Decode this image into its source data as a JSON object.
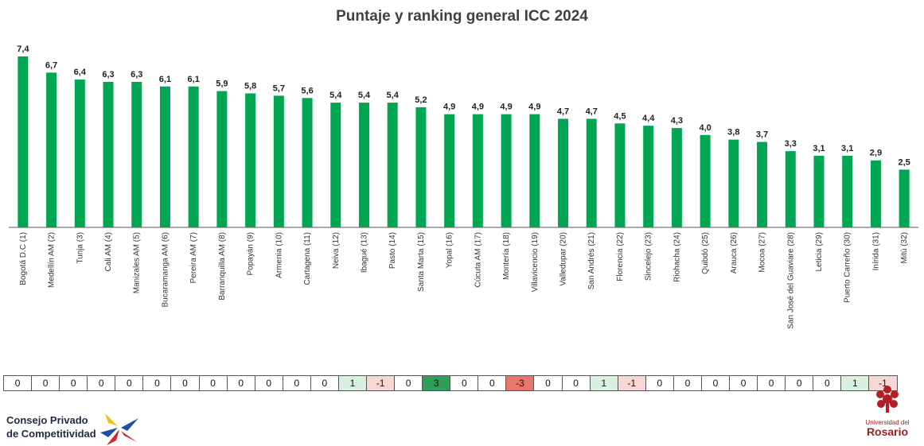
{
  "chart_data": {
    "type": "bar",
    "title": "Puntaje y ranking general ICC 2024",
    "categories": [
      "Bogotá D.C (1)",
      "Medellín AM (2)",
      "Tunja (3)",
      "Cali AM (4)",
      "Manizales AM (5)",
      "Bucaramanga AM (6)",
      "Pereira AM (7)",
      "Barranquilla AM (8)",
      "Popayán (9)",
      "Armenia (10)",
      "Cartagena (11)",
      "Neiva (12)",
      "Ibagué (13)",
      "Pasto (14)",
      "Santa Marta (15)",
      "Yopal (16)",
      "Cúcuta AM (17)",
      "Montería (18)",
      "Villavicencio (19)",
      "Valledupar (20)",
      "San Andrés (21)",
      "Florencia (22)",
      "Sincelejo (23)",
      "Riohacha (24)",
      "Quibdó (25)",
      "Arauca (26)",
      "Mocoa (27)",
      "San José del Guaviare (28)",
      "Leticia (29)",
      "Puerto Carreño (30)",
      "Inírida (31)",
      "Mitú (32)"
    ],
    "values": [
      7.4,
      6.7,
      6.4,
      6.3,
      6.3,
      6.1,
      6.1,
      5.9,
      5.8,
      5.7,
      5.6,
      5.4,
      5.4,
      5.4,
      5.2,
      4.9,
      4.9,
      4.9,
      4.9,
      4.7,
      4.7,
      4.5,
      4.4,
      4.3,
      4.0,
      3.8,
      3.7,
      3.3,
      3.1,
      3.1,
      2.9,
      2.5
    ],
    "value_labels": [
      "7,4",
      "6,7",
      "6,4",
      "6,3",
      "6,3",
      "6,1",
      "6,1",
      "5,9",
      "5,8",
      "5,7",
      "5,6",
      "5,4",
      "5,4",
      "5,4",
      "5,2",
      "4,9",
      "4,9",
      "4,9",
      "4,9",
      "4,7",
      "4,7",
      "4,5",
      "4,4",
      "4,3",
      "4,0",
      "3,8",
      "3,7",
      "3,3",
      "3,1",
      "3,1",
      "2,9",
      "2,5"
    ],
    "ylim": [
      0,
      7.4
    ],
    "ranking_change": [
      "0",
      "0",
      "0",
      "0",
      "0",
      "0",
      "0",
      "0",
      "0",
      "0",
      "0",
      "0",
      "1",
      "-1",
      "0",
      "3",
      "0",
      "0",
      "-3",
      "0",
      "0",
      "1",
      "-1",
      "0",
      "0",
      "0",
      "0",
      "0",
      "0",
      "0",
      "1",
      "-1"
    ],
    "colors": {
      "bar": "#00a651",
      "pos": "#d9efe0",
      "pos_strong": "#2e9e5b",
      "neg": "#f7d6d6",
      "neg_strong": "#e8766d"
    }
  },
  "logos": {
    "cpc_line1": "Consejo Privado",
    "cpc_line2": "de Competitividad",
    "ur_line1": "Universidad del",
    "ur_line2": "Rosario"
  }
}
